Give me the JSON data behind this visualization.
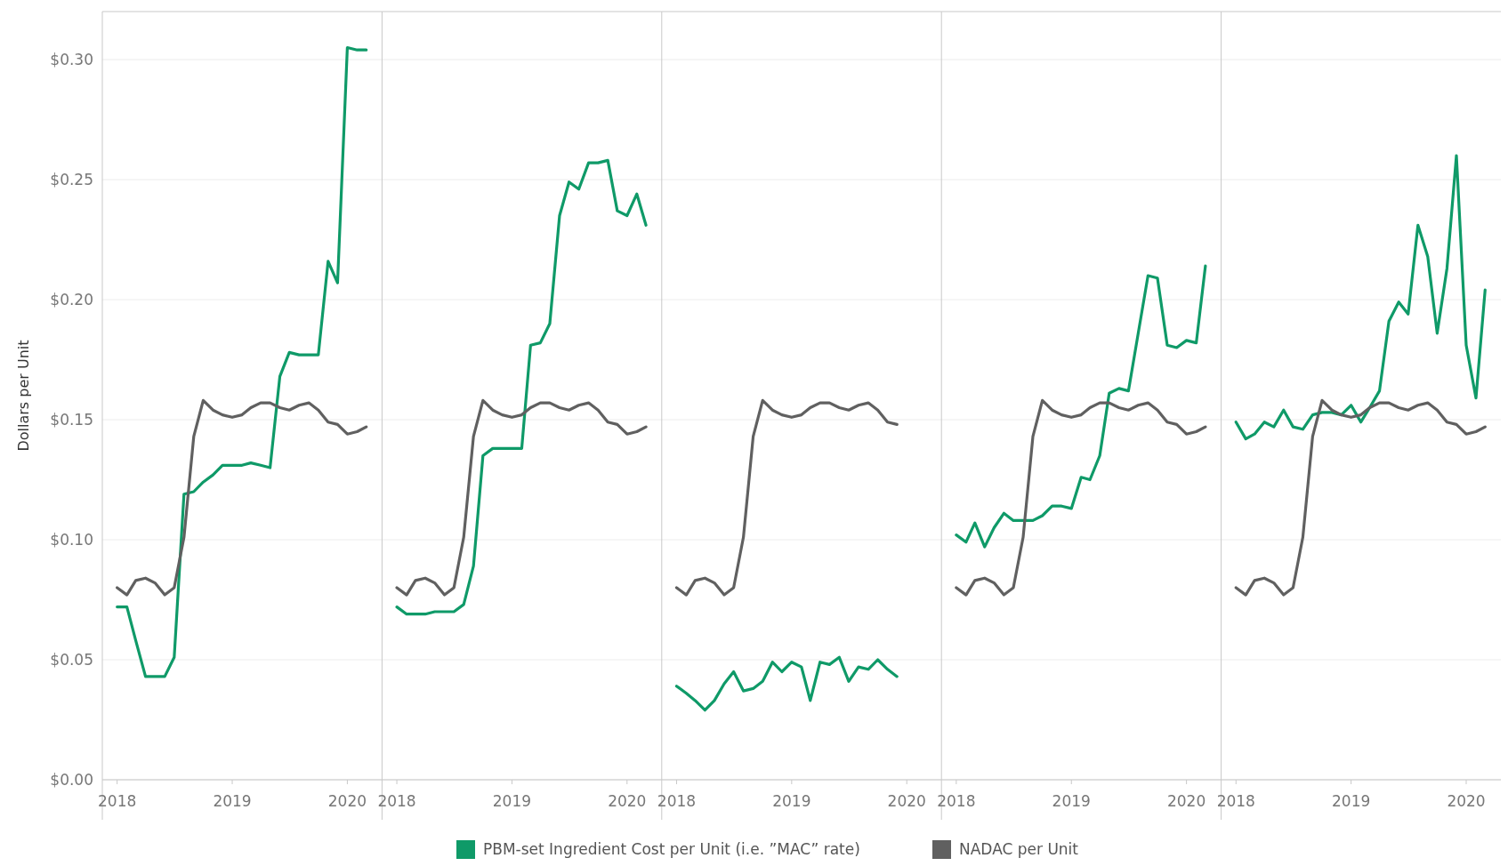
{
  "chart_data": [
    {
      "type": "line",
      "ylabel": "Dollars per Unit",
      "legend": "bottom",
      "grid": "y",
      "line_style": "solid",
      "x": [
        "2018-01",
        "2018-02",
        "2018-03",
        "2018-04",
        "2018-05",
        "2018-06",
        "2018-07",
        "2018-08",
        "2018-09",
        "2018-10",
        "2018-11",
        "2018-12",
        "2019-01",
        "2019-02",
        "2019-03",
        "2019-04",
        "2019-05",
        "2019-06",
        "2019-07",
        "2019-08",
        "2019-09",
        "2019-10",
        "2019-11",
        "2019-12",
        "2020-01",
        "2020-02",
        "2020-03"
      ],
      "xlim": [
        "2017-11-15",
        "2020-04-20"
      ],
      "xticks": [
        {
          "value": "2018-01",
          "label": "2018"
        },
        {
          "value": "2019-01",
          "label": "2019"
        },
        {
          "value": "2020-01",
          "label": "2020"
        }
      ],
      "ylim": [
        0,
        0.32
      ],
      "yticks": [
        {
          "value": 0,
          "label": "$0.00"
        },
        {
          "value": 0.05,
          "label": "$0.05"
        },
        {
          "value": 0.1,
          "label": "$0.10"
        },
        {
          "value": 0.15,
          "label": "$0.15"
        },
        {
          "value": 0.2,
          "label": "$0.20"
        },
        {
          "value": 0.25,
          "label": "$0.25"
        },
        {
          "value": 0.3,
          "label": "$0.30"
        }
      ],
      "series": [
        {
          "name": "PBM-set Ingredient Cost per Unit (i.e. ”MAC” rate)",
          "color": "#0f9a68",
          "values": [
            0.072,
            0.072,
            0.058,
            0.043,
            0.043,
            0.043,
            0.051,
            0.119,
            0.12,
            0.124,
            0.127,
            0.131,
            0.131,
            0.131,
            0.132,
            0.131,
            0.13,
            0.168,
            0.178,
            0.177,
            0.177,
            0.177,
            0.216,
            0.207,
            0.305,
            0.304,
            0.304
          ]
        },
        {
          "name": "NADAC per Unit",
          "color": "#606060",
          "values": [
            0.08,
            0.077,
            0.083,
            0.084,
            0.082,
            0.077,
            0.08,
            0.101,
            0.143,
            0.158,
            0.154,
            0.152,
            0.151,
            0.152,
            0.155,
            0.157,
            0.157,
            0.155,
            0.154,
            0.156,
            0.157,
            0.154,
            0.149,
            0.148,
            0.144,
            0.145,
            0.147
          ]
        }
      ]
    },
    {
      "type": "line",
      "grid": "y",
      "line_style": "solid",
      "tick_labels": "x",
      "x": [
        "2018-01",
        "2018-02",
        "2018-03",
        "2018-04",
        "2018-05",
        "2018-06",
        "2018-07",
        "2018-08",
        "2018-09",
        "2018-10",
        "2018-11",
        "2018-12",
        "2019-01",
        "2019-02",
        "2019-03",
        "2019-04",
        "2019-05",
        "2019-06",
        "2019-07",
        "2019-08",
        "2019-09",
        "2019-10",
        "2019-11",
        "2019-12",
        "2020-01",
        "2020-02",
        "2020-03"
      ],
      "xlim": [
        "2017-11-15",
        "2020-04-20"
      ],
      "xticks": [
        {
          "value": "2018-01",
          "label": "2018"
        },
        {
          "value": "2019-01",
          "label": "2019"
        },
        {
          "value": "2020-01",
          "label": "2020"
        }
      ],
      "ylim": [
        0,
        0.32
      ],
      "yticks": [
        0,
        0.05,
        0.1,
        0.15,
        0.2,
        0.25,
        0.3
      ],
      "series": [
        {
          "color": "#0f9a68",
          "values": [
            0.072,
            0.069,
            0.069,
            0.069,
            0.07,
            0.07,
            0.07,
            0.073,
            0.089,
            0.135,
            0.138,
            0.138,
            0.138,
            0.138,
            0.181,
            0.182,
            0.19,
            0.235,
            0.249,
            0.246,
            0.257,
            0.257,
            0.258,
            0.237,
            0.235,
            0.244,
            0.231
          ]
        },
        {
          "color": "#606060",
          "values": [
            0.08,
            0.077,
            0.083,
            0.084,
            0.082,
            0.077,
            0.08,
            0.101,
            0.143,
            0.158,
            0.154,
            0.152,
            0.151,
            0.152,
            0.155,
            0.157,
            0.157,
            0.155,
            0.154,
            0.156,
            0.157,
            0.154,
            0.149,
            0.148,
            0.144,
            0.145,
            0.147
          ]
        }
      ]
    },
    {
      "type": "line",
      "grid": "y",
      "line_style": "solid",
      "tick_labels": "x",
      "x": [
        "2018-01",
        "2018-02",
        "2018-03",
        "2018-04",
        "2018-05",
        "2018-06",
        "2018-07",
        "2018-08",
        "2018-09",
        "2018-10",
        "2018-11",
        "2018-12",
        "2019-01",
        "2019-02",
        "2019-03",
        "2019-04",
        "2019-05",
        "2019-06",
        "2019-07",
        "2019-08",
        "2019-09",
        "2019-10",
        "2019-11",
        "2019-12"
      ],
      "xlim": [
        "2017-11-15",
        "2020-04-20"
      ],
      "xticks": [
        {
          "value": "2018-01",
          "label": "2018"
        },
        {
          "value": "2019-01",
          "label": "2019"
        },
        {
          "value": "2020-01",
          "label": "2020"
        }
      ],
      "ylim": [
        0,
        0.32
      ],
      "yticks": [
        0,
        0.05,
        0.1,
        0.15,
        0.2,
        0.25,
        0.3
      ],
      "series": [
        {
          "color": "#0f9a68",
          "values": [
            0.039,
            0.036,
            0.033,
            0.029,
            0.033,
            0.04,
            0.045,
            0.037,
            0.038,
            0.041,
            0.049,
            0.045,
            0.049,
            0.047,
            0.033,
            0.049,
            0.048,
            0.051,
            0.041,
            0.047,
            0.046,
            0.05,
            0.046,
            0.043
          ]
        },
        {
          "color": "#606060",
          "values": [
            0.08,
            0.077,
            0.083,
            0.084,
            0.082,
            0.077,
            0.08,
            0.101,
            0.143,
            0.158,
            0.154,
            0.152,
            0.151,
            0.152,
            0.155,
            0.157,
            0.157,
            0.155,
            0.154,
            0.156,
            0.157,
            0.154,
            0.149,
            0.148
          ]
        }
      ]
    },
    {
      "type": "line",
      "grid": "y",
      "line_style": "solid",
      "tick_labels": "x",
      "x": [
        "2018-01",
        "2018-02",
        "2018-03",
        "2018-04",
        "2018-05",
        "2018-06",
        "2018-07",
        "2018-08",
        "2018-09",
        "2018-10",
        "2018-11",
        "2018-12",
        "2019-01",
        "2019-02",
        "2019-03",
        "2019-04",
        "2019-05",
        "2019-06",
        "2019-07",
        "2019-08",
        "2019-09",
        "2019-10",
        "2019-11",
        "2019-12",
        "2020-01",
        "2020-02",
        "2020-03"
      ],
      "xlim": [
        "2017-11-15",
        "2020-04-20"
      ],
      "xticks": [
        {
          "value": "2018-01",
          "label": "2018"
        },
        {
          "value": "2019-01",
          "label": "2019"
        },
        {
          "value": "2020-01",
          "label": "2020"
        }
      ],
      "ylim": [
        0,
        0.32
      ],
      "yticks": [
        0,
        0.05,
        0.1,
        0.15,
        0.2,
        0.25,
        0.3
      ],
      "series": [
        {
          "color": "#0f9a68",
          "values": [
            0.102,
            0.099,
            0.107,
            0.097,
            0.105,
            0.111,
            0.108,
            0.108,
            0.108,
            0.11,
            0.114,
            0.114,
            0.113,
            0.126,
            0.125,
            0.135,
            0.161,
            0.163,
            0.162,
            0.186,
            0.21,
            0.209,
            0.181,
            0.18,
            0.183,
            0.182,
            0.214
          ]
        },
        {
          "color": "#606060",
          "values": [
            0.08,
            0.077,
            0.083,
            0.084,
            0.082,
            0.077,
            0.08,
            0.101,
            0.143,
            0.158,
            0.154,
            0.152,
            0.151,
            0.152,
            0.155,
            0.157,
            0.157,
            0.155,
            0.154,
            0.156,
            0.157,
            0.154,
            0.149,
            0.148,
            0.144,
            0.145,
            0.147
          ]
        }
      ]
    },
    {
      "type": "line",
      "grid": "y",
      "line_style": "solid",
      "tick_labels": "x",
      "x": [
        "2018-01",
        "2018-02",
        "2018-03",
        "2018-04",
        "2018-05",
        "2018-06",
        "2018-07",
        "2018-08",
        "2018-09",
        "2018-10",
        "2018-11",
        "2018-12",
        "2019-01",
        "2019-02",
        "2019-03",
        "2019-04",
        "2019-05",
        "2019-06",
        "2019-07",
        "2019-08",
        "2019-09",
        "2019-10",
        "2019-11",
        "2019-12",
        "2020-01",
        "2020-02",
        "2020-03"
      ],
      "xlim": [
        "2017-11-15",
        "2020-04-20"
      ],
      "xticks": [
        {
          "value": "2018-01",
          "label": "2018"
        },
        {
          "value": "2019-01",
          "label": "2019"
        },
        {
          "value": "2020-01",
          "label": "2020"
        }
      ],
      "ylim": [
        0,
        0.32
      ],
      "yticks": [
        0,
        0.05,
        0.1,
        0.15,
        0.2,
        0.25,
        0.3
      ],
      "series": [
        {
          "color": "#0f9a68",
          "values": [
            0.149,
            0.142,
            0.144,
            0.149,
            0.147,
            0.154,
            0.147,
            0.146,
            0.152,
            0.153,
            0.153,
            0.152,
            0.156,
            0.149,
            0.155,
            0.162,
            0.191,
            0.199,
            0.194,
            0.231,
            0.218,
            0.186,
            0.213,
            0.26,
            0.181,
            0.159,
            0.204
          ]
        },
        {
          "color": "#606060",
          "values": [
            0.08,
            0.077,
            0.083,
            0.084,
            0.082,
            0.077,
            0.08,
            0.101,
            0.143,
            0.158,
            0.154,
            0.152,
            0.151,
            0.152,
            0.155,
            0.157,
            0.157,
            0.155,
            0.154,
            0.156,
            0.157,
            0.154,
            0.149,
            0.148,
            0.144,
            0.145,
            0.147
          ]
        }
      ]
    }
  ]
}
